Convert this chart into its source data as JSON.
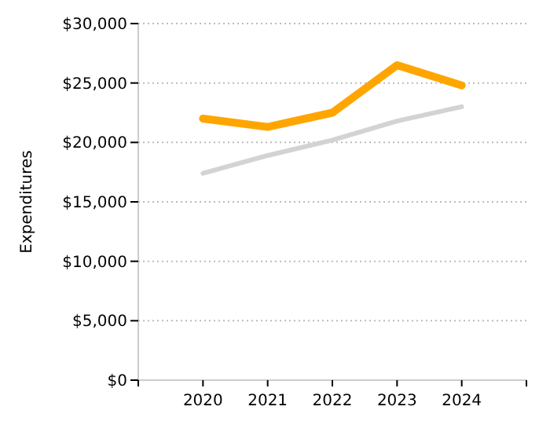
{
  "chart_data": {
    "type": "line",
    "ylabel": "Expenditures",
    "x": [
      2020,
      2021,
      2022,
      2023,
      2024
    ],
    "series": [
      {
        "color": "#ffa500",
        "values": [
          22000,
          21300,
          22500,
          26500,
          24800
        ]
      },
      {
        "color": "#d3d3d3",
        "values": [
          17400,
          18900,
          20200,
          21800,
          23000
        ]
      }
    ],
    "xlim": [
      2019,
      2025
    ],
    "xticks": [
      {
        "value": 2019,
        "label": null
      },
      2020,
      2021,
      2022,
      2023,
      2024,
      {
        "value": 2025,
        "label": null
      }
    ],
    "ylim": [
      0,
      30000
    ],
    "yticks": [
      {
        "value": 0,
        "label": "$0"
      },
      {
        "value": 5000,
        "label": "$5,000"
      },
      {
        "value": 10000,
        "label": "$10,000"
      },
      {
        "value": 15000,
        "label": "$15,000"
      },
      {
        "value": 20000,
        "label": "$20,000"
      },
      {
        "value": 25000,
        "label": "$25,000"
      },
      {
        "value": 30000,
        "label": "$30,000"
      }
    ],
    "grid": "y",
    "marker": "none",
    "line_style": "solid"
  }
}
